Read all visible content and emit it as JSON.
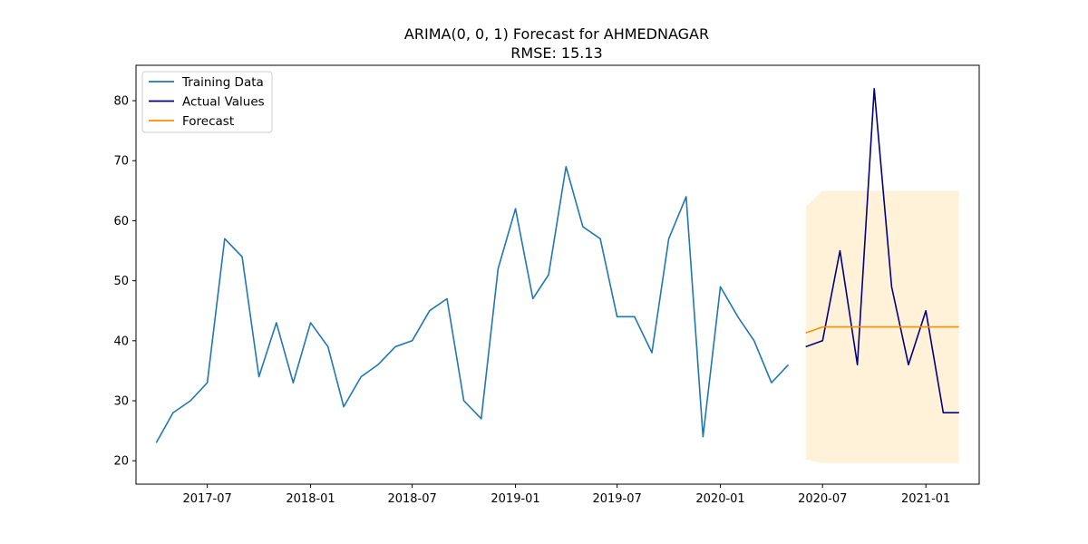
{
  "chart_data": {
    "type": "line",
    "title": "ARIMA(0, 0, 1) Forecast for AHMEDNAGAR",
    "subtitle": "RMSE: 15.13",
    "xlabel": "",
    "ylabel": "",
    "x_ticks": [
      "2017-07",
      "2018-01",
      "2018-07",
      "2019-01",
      "2019-07",
      "2020-01",
      "2020-07",
      "2021-01"
    ],
    "y_ticks": [
      "20",
      "30",
      "40",
      "50",
      "60",
      "70",
      "80"
    ],
    "ylim": [
      16.1,
      85.9
    ],
    "xlim": [
      "2017-02-24",
      "2021-04-06"
    ],
    "grid": false,
    "legend_position": "top-left",
    "series": [
      {
        "name": "Training Data",
        "color": "#1f77b4",
        "x": [
          "2017-04-01",
          "2017-05-01",
          "2017-06-01",
          "2017-07-01",
          "2017-08-01",
          "2017-09-01",
          "2017-10-01",
          "2017-11-01",
          "2017-12-01",
          "2018-01-01",
          "2018-02-01",
          "2018-03-01",
          "2018-04-01",
          "2018-05-01",
          "2018-06-01",
          "2018-07-01",
          "2018-08-01",
          "2018-09-01",
          "2018-10-01",
          "2018-11-01",
          "2018-12-01",
          "2019-01-01",
          "2019-02-01",
          "2019-03-01",
          "2019-04-01",
          "2019-05-01",
          "2019-06-01",
          "2019-07-01",
          "2019-08-01",
          "2019-09-01",
          "2019-10-01",
          "2019-11-01",
          "2019-12-01",
          "2020-01-01",
          "2020-02-01",
          "2020-03-01",
          "2020-04-01",
          "2020-05-01"
        ],
        "y": [
          23,
          28,
          30,
          33,
          57,
          54,
          34,
          43,
          33,
          43,
          39,
          29,
          34,
          36,
          39,
          40,
          45,
          47,
          30,
          27,
          52,
          62,
          47,
          51,
          69,
          59,
          57,
          44,
          44,
          38,
          57,
          64,
          24,
          49,
          44,
          40,
          33,
          36
        ]
      },
      {
        "name": "Actual Values",
        "color": "#000080",
        "x": [
          "2020-06-01",
          "2020-07-01",
          "2020-08-01",
          "2020-09-01",
          "2020-10-01",
          "2020-11-01",
          "2020-12-01",
          "2021-01-01",
          "2021-02-01",
          "2021-03-01"
        ],
        "y": [
          39,
          40,
          55,
          36,
          82,
          49,
          36,
          45,
          28,
          28
        ]
      },
      {
        "name": "Forecast",
        "color": "#ff8c00",
        "x": [
          "2020-06-01",
          "2020-07-01",
          "2020-08-01",
          "2020-09-01",
          "2020-10-01",
          "2020-11-01",
          "2020-12-01",
          "2021-01-01",
          "2021-02-01",
          "2021-03-01"
        ],
        "y": [
          41.3,
          42.3,
          42.3,
          42.3,
          42.3,
          42.3,
          42.3,
          42.3,
          42.3,
          42.3
        ]
      }
    ],
    "confidence_band": {
      "color": "#ffe5b4",
      "x": [
        "2020-06-01",
        "2020-07-01",
        "2020-08-01",
        "2020-09-01",
        "2020-10-01",
        "2020-11-01",
        "2020-12-01",
        "2021-01-01",
        "2021-02-01",
        "2021-03-01"
      ],
      "lower": [
        20.2,
        19.6,
        19.6,
        19.6,
        19.6,
        19.6,
        19.6,
        19.6,
        19.6,
        19.6
      ],
      "upper": [
        62.3,
        65.0,
        65.0,
        65.0,
        65.0,
        65.0,
        65.0,
        65.0,
        65.0,
        65.0
      ]
    }
  }
}
